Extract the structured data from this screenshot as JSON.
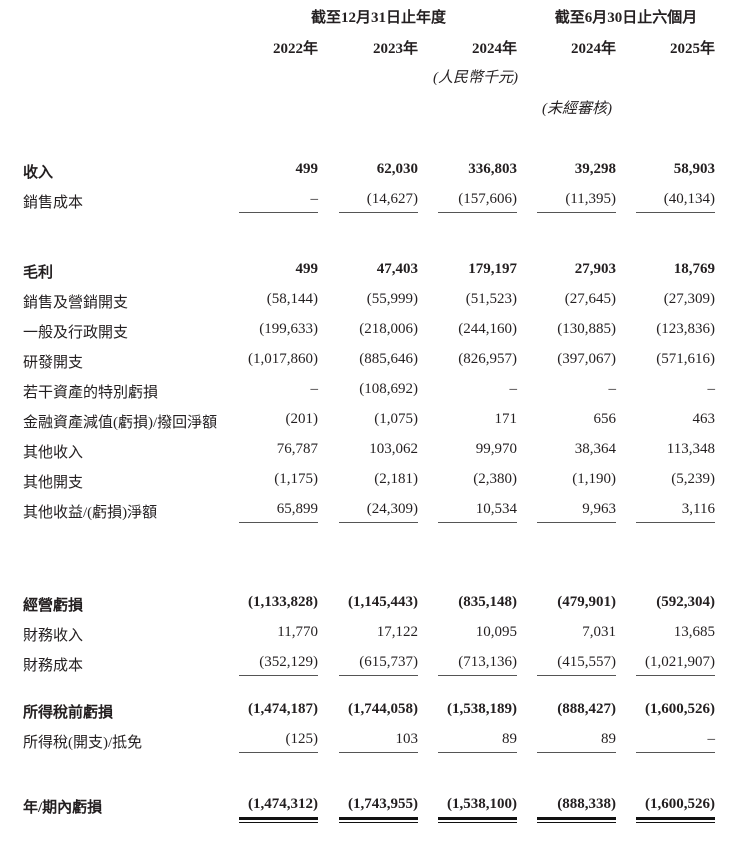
{
  "header": {
    "group_annual": "截至12月31日止年度",
    "group_interim": "截至6月30日止六個月",
    "years": [
      "2022年",
      "2023年",
      "2024年",
      "2024年",
      "2025年"
    ],
    "currency_note": "(人民幣千元)",
    "unaudited_note": "(未經審核)"
  },
  "rows": [
    {
      "label": "收入",
      "bold": true,
      "values": [
        "499",
        "62,030",
        "336,803",
        "39,298",
        "58,903"
      ]
    },
    {
      "label": "銷售成本",
      "bold": false,
      "values": [
        "–",
        "(14,627)",
        "(157,606)",
        "(11,395)",
        "(40,134)"
      ],
      "rule": "single"
    },
    {
      "label": "毛利",
      "bold": true,
      "values": [
        "499",
        "47,403",
        "179,197",
        "27,903",
        "18,769"
      ]
    },
    {
      "label": "銷售及營銷開支",
      "bold": false,
      "values": [
        "(58,144)",
        "(55,999)",
        "(51,523)",
        "(27,645)",
        "(27,309)"
      ]
    },
    {
      "label": "一般及行政開支",
      "bold": false,
      "values": [
        "(199,633)",
        "(218,006)",
        "(244,160)",
        "(130,885)",
        "(123,836)"
      ]
    },
    {
      "label": "研發開支",
      "bold": false,
      "values": [
        "(1,017,860)",
        "(885,646)",
        "(826,957)",
        "(397,067)",
        "(571,616)"
      ]
    },
    {
      "label": "若干資產的特別虧損",
      "bold": false,
      "values": [
        "–",
        "(108,692)",
        "–",
        "–",
        "–"
      ]
    },
    {
      "label": "金融資產減值(虧損)/撥回淨額",
      "bold": false,
      "values": [
        "(201)",
        "(1,075)",
        "171",
        "656",
        "463"
      ]
    },
    {
      "label": "其他收入",
      "bold": false,
      "values": [
        "76,787",
        "103,062",
        "99,970",
        "38,364",
        "113,348"
      ]
    },
    {
      "label": "其他開支",
      "bold": false,
      "values": [
        "(1,175)",
        "(2,181)",
        "(2,380)",
        "(1,190)",
        "(5,239)"
      ]
    },
    {
      "label": "其他收益/(虧損)淨額",
      "bold": false,
      "values": [
        "65,899",
        "(24,309)",
        "10,534",
        "9,963",
        "3,116"
      ],
      "rule": "single"
    },
    {
      "label": "經營虧損",
      "bold": true,
      "values": [
        "(1,133,828)",
        "(1,145,443)",
        "(835,148)",
        "(479,901)",
        "(592,304)"
      ]
    },
    {
      "label": "財務收入",
      "bold": false,
      "values": [
        "11,770",
        "17,122",
        "10,095",
        "7,031",
        "13,685"
      ]
    },
    {
      "label": "財務成本",
      "bold": false,
      "values": [
        "(352,129)",
        "(615,737)",
        "(713,136)",
        "(415,557)",
        "(1,021,907)"
      ],
      "rule": "single"
    },
    {
      "label": "所得稅前虧損",
      "bold": true,
      "values": [
        "(1,474,187)",
        "(1,744,058)",
        "(1,538,189)",
        "(888,427)",
        "(1,600,526)"
      ]
    },
    {
      "label": "所得稅(開支)/抵免",
      "bold": false,
      "values": [
        "(125)",
        "103",
        "89",
        "89",
        "–"
      ],
      "rule": "single"
    },
    {
      "label": "年/期內虧損",
      "bold": true,
      "values": [
        "(1,474,312)",
        "(1,743,955)",
        "(1,538,100)",
        "(888,338)",
        "(1,600,526)"
      ],
      "rule": "double"
    }
  ]
}
